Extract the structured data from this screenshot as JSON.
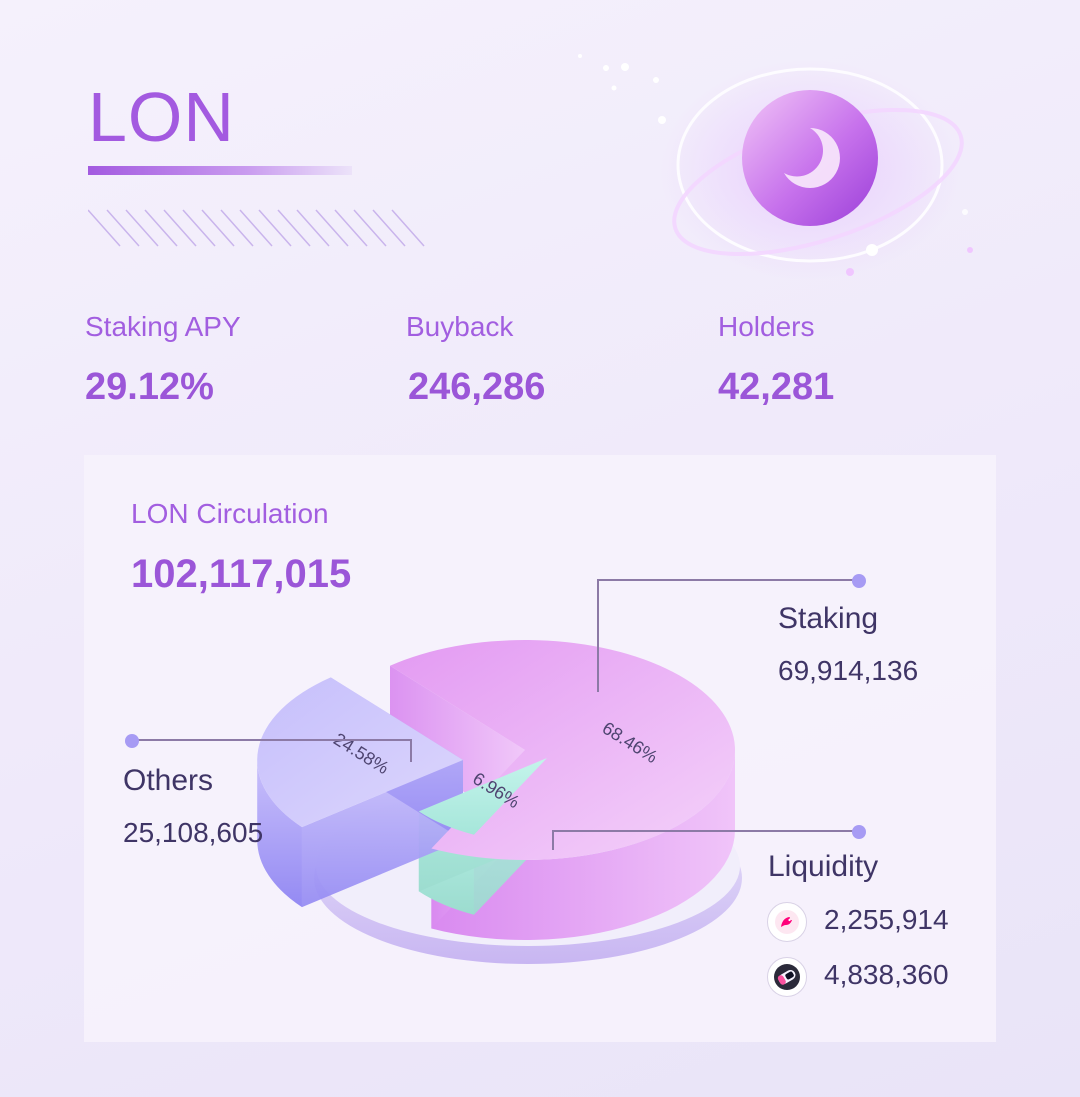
{
  "brand": {
    "title": "LON"
  },
  "stats": [
    {
      "label": "Staking APY",
      "value": "29.12%"
    },
    {
      "label": "Buyback",
      "value": "246,286"
    },
    {
      "label": "Holders",
      "value": "42,281"
    }
  ],
  "circulation": {
    "label": "LON Circulation",
    "value": "102,117,015"
  },
  "chart_data": {
    "type": "pie",
    "title": "LON Circulation",
    "total": 102117015,
    "slices": [
      {
        "name": "Staking",
        "value": 69914136,
        "value_label": "69,914,136",
        "percent": 68.46,
        "percent_label": "68.46%",
        "color": "#e7a9f3"
      },
      {
        "name": "Liquidity",
        "value": 7094274,
        "percent": 6.96,
        "percent_label": "6.96%",
        "color": "#a9ebde"
      },
      {
        "name": "Others",
        "value": 25108605,
        "value_label": "25,108,605",
        "percent": 24.58,
        "percent_label": "24.58%",
        "color": "#a79bf4"
      }
    ],
    "liquidity_breakdown": [
      {
        "icon": "uniswap-icon",
        "value": "2,255,914"
      },
      {
        "icon": "sushiswap-icon",
        "value": "4,838,360"
      }
    ]
  },
  "colors": {
    "accent": "#a35ae0",
    "text_dark": "#3f3566",
    "leader_line": "#8c7aa6",
    "staking": "#e7a9f3",
    "others": "#a79bf4",
    "liquidity": "#a9ebde"
  },
  "icons": [
    "lon-logo-icon",
    "uniswap-icon",
    "sushiswap-icon"
  ]
}
